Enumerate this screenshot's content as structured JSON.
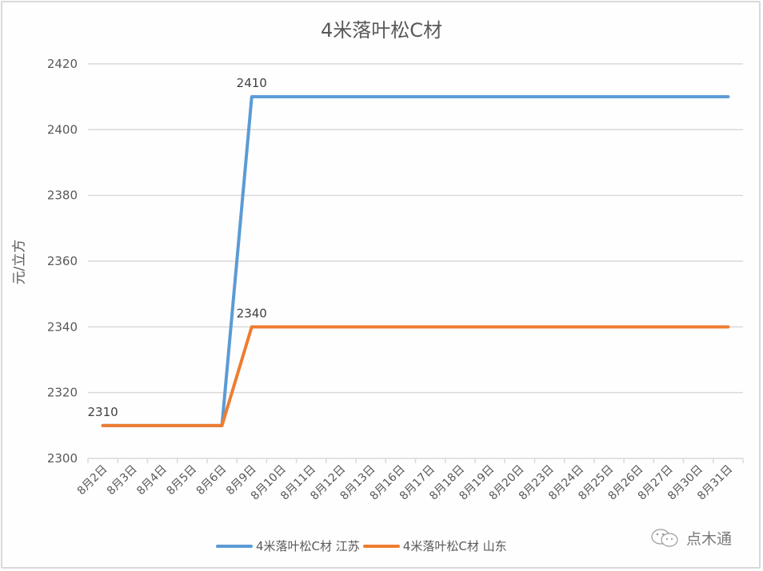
{
  "chart_data": {
    "type": "line",
    "title": "4米落叶松C材",
    "xlabel": "",
    "ylabel": "元/立方",
    "ylim": [
      2300,
      2420
    ],
    "yticks": [
      2300,
      2320,
      2340,
      2360,
      2380,
      2400,
      2420
    ],
    "grid": true,
    "legend_position": "bottom",
    "categories": [
      "8月2日",
      "8月3日",
      "8月4日",
      "8月5日",
      "8月6日",
      "8月9日",
      "8月10日",
      "8月11日",
      "8月12日",
      "8月13日",
      "8月16日",
      "8月17日",
      "8月18日",
      "8月19日",
      "8月20日",
      "8月23日",
      "8月24日",
      "8月25日",
      "8月26日",
      "8月27日",
      "8月30日",
      "8月31日"
    ],
    "series": [
      {
        "name": "4米落叶松C材 江苏",
        "color": "#5b9bd5",
        "values": [
          2310,
          2310,
          2310,
          2310,
          2310,
          2410,
          2410,
          2410,
          2410,
          2410,
          2410,
          2410,
          2410,
          2410,
          2410,
          2410,
          2410,
          2410,
          2410,
          2410,
          2410,
          2410
        ],
        "data_labels": [
          {
            "index": 5,
            "text": "2410"
          }
        ]
      },
      {
        "name": "4米落叶松C材 山东",
        "color": "#ed7d31",
        "values": [
          2310,
          2310,
          2310,
          2310,
          2310,
          2340,
          2340,
          2340,
          2340,
          2340,
          2340,
          2340,
          2340,
          2340,
          2340,
          2340,
          2340,
          2340,
          2340,
          2340,
          2340,
          2340
        ],
        "data_labels": [
          {
            "index": 0,
            "text": "2310"
          },
          {
            "index": 5,
            "text": "2340"
          }
        ]
      }
    ],
    "annotations": []
  },
  "title": "4米落叶松C材",
  "ylabel": "元/立方",
  "legend": [
    {
      "label": "4米落叶松C材 江苏",
      "color": "#5b9bd5"
    },
    {
      "label": "4米落叶松C材 山东",
      "color": "#ed7d31"
    }
  ],
  "watermark": {
    "icon": "wechat-icon",
    "text": "点木通"
  },
  "colors": {
    "grid": "#d9d9d9",
    "text": "#595959",
    "border": "#d9d9d9"
  }
}
